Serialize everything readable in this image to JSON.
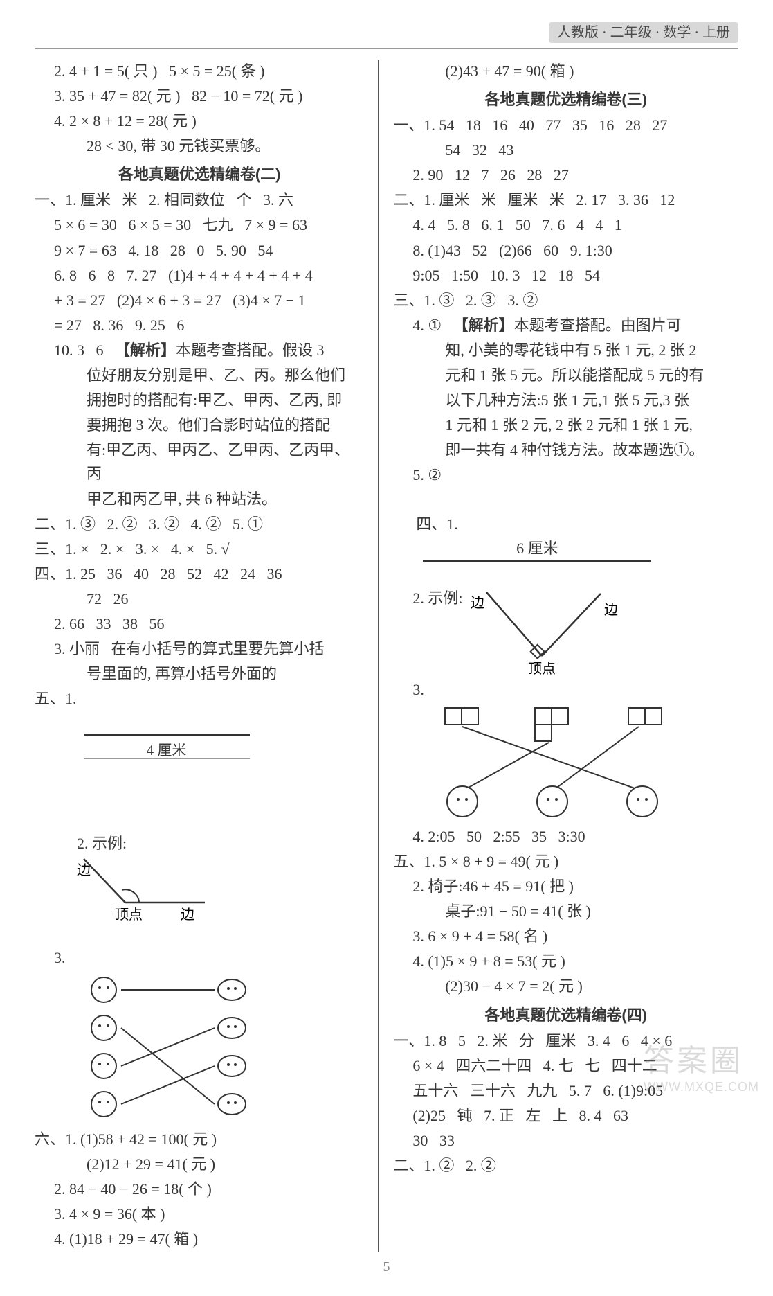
{
  "header": {
    "text": "人教版 · 二年级 · 数学 · 上册"
  },
  "left": {
    "lines_top": [
      {
        "cls": "indent1",
        "text": "2. 4 + 1 = 5( 只 )   5 × 5 = 25( 条 )"
      },
      {
        "cls": "indent1",
        "text": "3. 35 + 47 = 82( 元 )   82 − 10 = 72( 元 )"
      },
      {
        "cls": "indent1",
        "text": "4. 2 × 8 + 12 = 28( 元 )"
      },
      {
        "cls": "indent2",
        "text": "28 < 30, 带 30 元钱买票够。"
      }
    ],
    "section2_title": "各地真题优选精编卷(二)",
    "s2_lines_a": [
      {
        "cls": "",
        "text": "一、1. 厘米   米   2. 相同数位   个   3. 六"
      },
      {
        "cls": "indent1",
        "text": "5 × 6 = 30   6 × 5 = 30   七九   7 × 9 = 63"
      },
      {
        "cls": "indent1",
        "text": "9 × 7 = 63   4. 18   28   0   5. 90   54"
      },
      {
        "cls": "indent1",
        "text": "6. 8   6   8   7. 27   (1)4 + 4 + 4 + 4 + 4 + 4"
      },
      {
        "cls": "indent1",
        "text": "+ 3 = 27   (2)4 × 6 + 3 = 27   (3)4 × 7 − 1"
      },
      {
        "cls": "indent1",
        "text": "= 27   8. 36   9. 25   6"
      }
    ],
    "s2_analysis_intro": "10. 3   6   ",
    "s2_analysis_tag": "【解析】",
    "s2_analysis_lines": [
      "本题考查搭配。假设 3",
      {
        "cls": "indent2",
        "text": "位好朋友分别是甲、乙、丙。那么他们"
      },
      {
        "cls": "indent2",
        "text": "拥抱时的搭配有:甲乙、甲丙、乙丙, 即"
      },
      {
        "cls": "indent2",
        "text": "要拥抱 3 次。他们合影时站位的搭配"
      },
      {
        "cls": "indent2",
        "text": "有:甲乙丙、甲丙乙、乙甲丙、乙丙甲、丙"
      },
      {
        "cls": "indent2",
        "text": "甲乙和丙乙甲, 共 6 种站法。"
      }
    ],
    "s2_more": [
      {
        "cls": "",
        "text": "二、1. ③   2. ②   3. ②   4. ②   5. ①"
      },
      {
        "cls": "",
        "text": "三、1. ×   2. ×   3. ×   4. ×   5. √"
      },
      {
        "cls": "",
        "text": "四、1. 25   36   40   28   52   42   24   36"
      },
      {
        "cls": "indent2",
        "text": "72   26"
      },
      {
        "cls": "indent1",
        "text": "2. 66   33   38   56"
      },
      {
        "cls": "indent1",
        "text": "3. 小丽   在有小括号的算式里要先算小括"
      },
      {
        "cls": "indent2",
        "text": "号里面的, 再算小括号外面的"
      }
    ],
    "five_label": "五、1.",
    "ruler1_text": "4 厘米",
    "five_2": "2. 示例:",
    "angle": {
      "side": "边",
      "vertex": "顶点"
    },
    "five_3": "3.",
    "six": [
      {
        "cls": "",
        "text": "六、1. (1)58 + 42 = 100( 元 )"
      },
      {
        "cls": "indent2",
        "text": "(2)12 + 29 = 41( 元 )"
      },
      {
        "cls": "indent1",
        "text": "2. 84 − 40 − 26 = 18( 个 )"
      },
      {
        "cls": "indent1",
        "text": "3. 4 × 9 = 36( 本 )"
      },
      {
        "cls": "indent1",
        "text": "4. (1)18 + 29 = 47( 箱 )"
      }
    ]
  },
  "right": {
    "top": [
      {
        "cls": "indent2",
        "text": "(2)43 + 47 = 90( 箱 )"
      }
    ],
    "section3_title": "各地真题优选精编卷(三)",
    "s3_a": [
      {
        "cls": "",
        "text": "一、1. 54   18   16   40   77   35   16   28   27"
      },
      {
        "cls": "indent2",
        "text": "54   32   43"
      },
      {
        "cls": "indent1",
        "text": "2. 90   12   7   26   28   27"
      },
      {
        "cls": "",
        "text": "二、1. 厘米   米   厘米   米   2. 17   3. 36   12"
      },
      {
        "cls": "indent1",
        "text": "4. 4   5. 8   6. 1   50   7. 6   4   4   1"
      },
      {
        "cls": "indent1",
        "text": "8. (1)43   52   (2)66   60   9. 1:30"
      },
      {
        "cls": "indent1",
        "text": "9:05   1:50   10. 3   12   18   54"
      },
      {
        "cls": "",
        "text": "三、1. ③   2. ③   3. ②"
      }
    ],
    "s3_analysis_intro": "4. ①   ",
    "s3_analysis_tag": "【解析】",
    "s3_analysis_lines": [
      "本题考查搭配。由图片可",
      {
        "cls": "indent2",
        "text": "知, 小美的零花钱中有 5 张 1 元, 2 张 2"
      },
      {
        "cls": "indent2",
        "text": "元和 1 张 5 元。所以能搭配成 5 元的有"
      },
      {
        "cls": "indent2",
        "text": "以下几种方法:5 张 1 元,1 张 5 元,3 张"
      },
      {
        "cls": "indent2",
        "text": "1 元和 1 张 2 元, 2 张 2 元和 1 张 1 元,"
      },
      {
        "cls": "indent2",
        "text": "即一共有 4 种付钱方法。故本题选①。"
      }
    ],
    "s3_5": {
      "cls": "indent1",
      "text": "5. ②"
    },
    "four_label": "四、1.",
    "ruler2_text": "6 厘米",
    "four_2": "2. 示例:",
    "angle2": {
      "side": "边",
      "vertex": "顶点"
    },
    "four_3": "3.",
    "four_4": {
      "cls": "indent1",
      "text": "4. 2:05   50   2:55   35   3:30"
    },
    "five_lines": [
      {
        "cls": "",
        "text": "五、1. 5 × 8 + 9 = 49( 元 )"
      },
      {
        "cls": "indent1",
        "text": "2. 椅子:46 + 45 = 91( 把 )"
      },
      {
        "cls": "indent2",
        "text": "桌子:91 − 50 = 41( 张 )"
      },
      {
        "cls": "indent1",
        "text": "3. 6 × 9 + 4 = 58( 名 )"
      },
      {
        "cls": "indent1",
        "text": "4. (1)5 × 9 + 8 = 53( 元 )"
      },
      {
        "cls": "indent2",
        "text": "(2)30 − 4 × 7 = 2( 元 )"
      }
    ],
    "section4_title": "各地真题优选精编卷(四)",
    "s4": [
      {
        "cls": "",
        "text": "一、1. 8   5   2. 米   分   厘米   3. 4   6   4 × 6"
      },
      {
        "cls": "indent1",
        "text": "6 × 4   四六二十四   4. 七   七   四十二"
      },
      {
        "cls": "indent1",
        "text": "五十六   三十六   九九   5. 7   6. (1)9:05"
      },
      {
        "cls": "indent1",
        "text": "(2)25   钝   7. 正   左   上   8. 4   63"
      },
      {
        "cls": "indent1",
        "text": "30   33"
      },
      {
        "cls": "",
        "text": "二、1. ②   2. ②"
      }
    ]
  },
  "page_number": "5",
  "watermark": {
    "top": "答案圈",
    "bottom": "WWW.MXQE.COM"
  }
}
